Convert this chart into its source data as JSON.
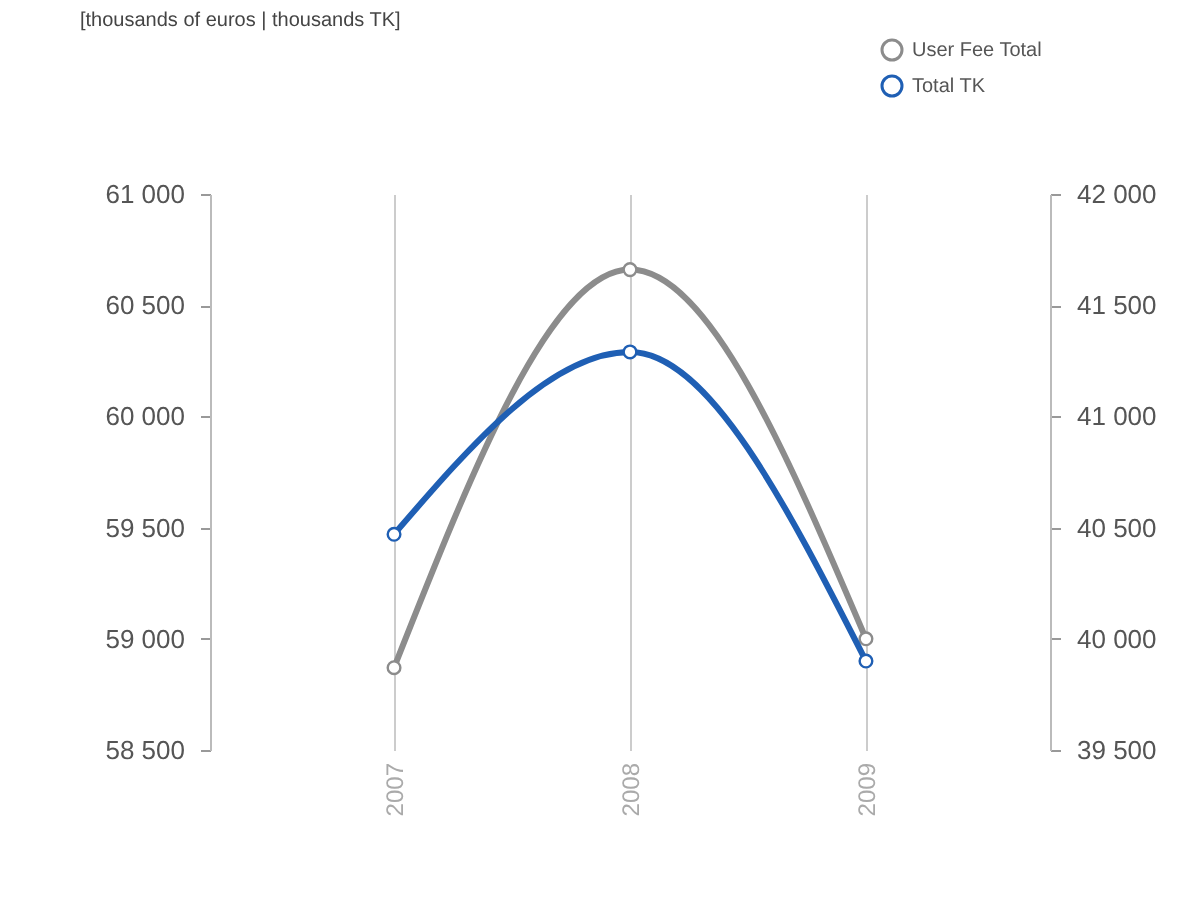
{
  "chart_data": {
    "type": "line",
    "subtitle": "[thousands of euros | thousands TK]",
    "categories": [
      "2007",
      "2008",
      "2009"
    ],
    "series": [
      {
        "name": "User Fee Total",
        "color": "#8c8c8c",
        "values": [
          58870,
          60660,
          59000
        ]
      },
      {
        "name": "Total TK",
        "color": "#1f5fb4",
        "values": [
          40470,
          41290,
          39900
        ],
        "axis": "y2"
      }
    ],
    "ylim": [
      58500,
      61000
    ],
    "yticks": [
      {
        "value": 58500,
        "label": "58 500"
      },
      {
        "value": 59000,
        "label": "59 000"
      },
      {
        "value": 59500,
        "label": "59 500"
      },
      {
        "value": 60000,
        "label": "60 000"
      },
      {
        "value": 60500,
        "label": "60 500"
      },
      {
        "value": 61000,
        "label": "61 000"
      }
    ],
    "y2lim": [
      39500,
      42000
    ],
    "y2ticks": [
      {
        "value": 39500,
        "label": "39 500"
      },
      {
        "value": 40000,
        "label": "40 000"
      },
      {
        "value": 40500,
        "label": "40 500"
      },
      {
        "value": 41000,
        "label": "41 000"
      },
      {
        "value": 41500,
        "label": "41 500"
      },
      {
        "value": 42000,
        "label": "42 000"
      }
    ],
    "grid": "x",
    "legend": "top right",
    "marker": "circle",
    "line_style": "solid"
  }
}
